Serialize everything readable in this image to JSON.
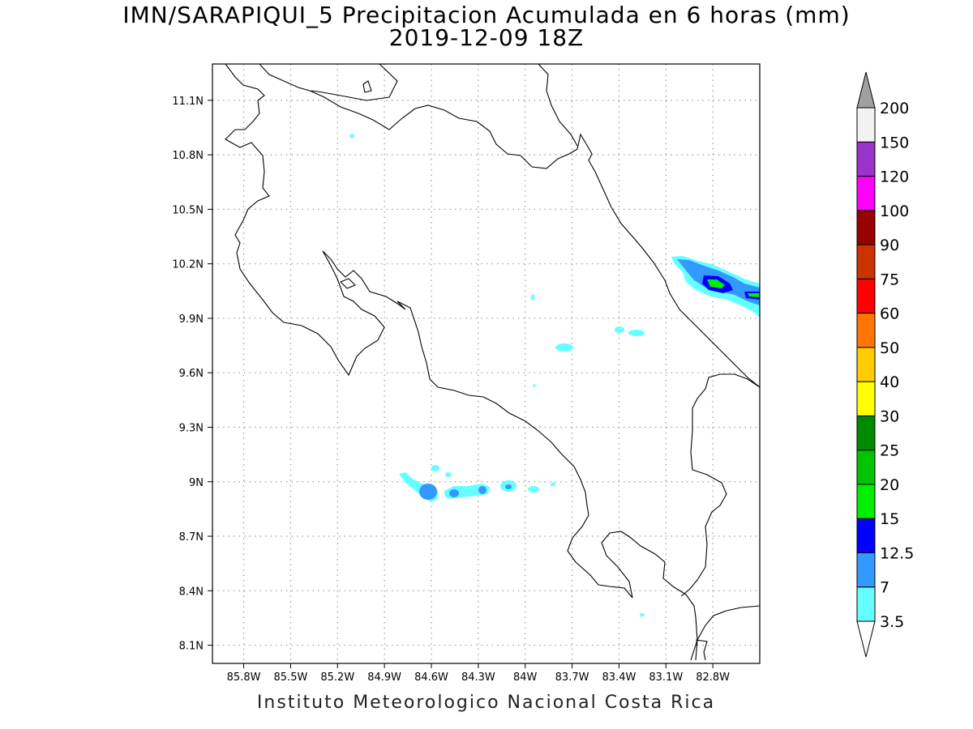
{
  "title": "IMN/SARAPIQUI_5 Precipitacion Acumulada en 6 horas (mm)",
  "subtitle": "2019-12-09 18Z",
  "footer": "Instituto Meteorologico Nacional Costa Rica",
  "map": {
    "lon_range": [
      -86.0,
      -82.5
    ],
    "lat_range": [
      8.0,
      11.3
    ],
    "lon_ticks": [
      {
        "value": -85.8,
        "label": "85.8W"
      },
      {
        "value": -85.5,
        "label": "85.5W"
      },
      {
        "value": -85.2,
        "label": "85.2W"
      },
      {
        "value": -84.9,
        "label": "84.9W"
      },
      {
        "value": -84.6,
        "label": "84.6W"
      },
      {
        "value": -84.3,
        "label": "84.3W"
      },
      {
        "value": -84.0,
        "label": "84W"
      },
      {
        "value": -83.7,
        "label": "83.7W"
      },
      {
        "value": -83.4,
        "label": "83.4W"
      },
      {
        "value": -83.1,
        "label": "83.1W"
      },
      {
        "value": -82.8,
        "label": "82.8W"
      }
    ],
    "lat_ticks": [
      {
        "value": 8.1,
        "label": "8.1N"
      },
      {
        "value": 8.4,
        "label": "8.4N"
      },
      {
        "value": 8.7,
        "label": "8.7N"
      },
      {
        "value": 9.0,
        "label": "9N"
      },
      {
        "value": 9.3,
        "label": "9.3N"
      },
      {
        "value": 9.6,
        "label": "9.6N"
      },
      {
        "value": 9.9,
        "label": "9.9N"
      },
      {
        "value": 10.2,
        "label": "10.2N"
      },
      {
        "value": 10.5,
        "label": "10.5N"
      },
      {
        "value": 10.8,
        "label": "10.8N"
      },
      {
        "value": 11.1,
        "label": "11.1N"
      }
    ],
    "grid": true
  },
  "legend": {
    "levels": [
      "3.5",
      "7",
      "12.5",
      "15",
      "20",
      "25",
      "30",
      "40",
      "50",
      "60",
      "75",
      "90",
      "100",
      "120",
      "150",
      "200"
    ],
    "colors": [
      "#66ffff",
      "#3399ff",
      "#0000ff",
      "#00ee00",
      "#00c400",
      "#008a00",
      "#ffff00",
      "#ffcc00",
      "#ff7700",
      "#ff0000",
      "#cc3300",
      "#990000",
      "#ff00ff",
      "#9933cc",
      "#f2f2f2"
    ],
    "low_arrow_color": "#ffffff",
    "high_arrow_color": "#a0a0a0"
  },
  "precip_colors": {
    "c3_5": "#66ffff",
    "c7": "#3399ff",
    "c12_5": "#0000ff",
    "c15": "#00ee00"
  }
}
